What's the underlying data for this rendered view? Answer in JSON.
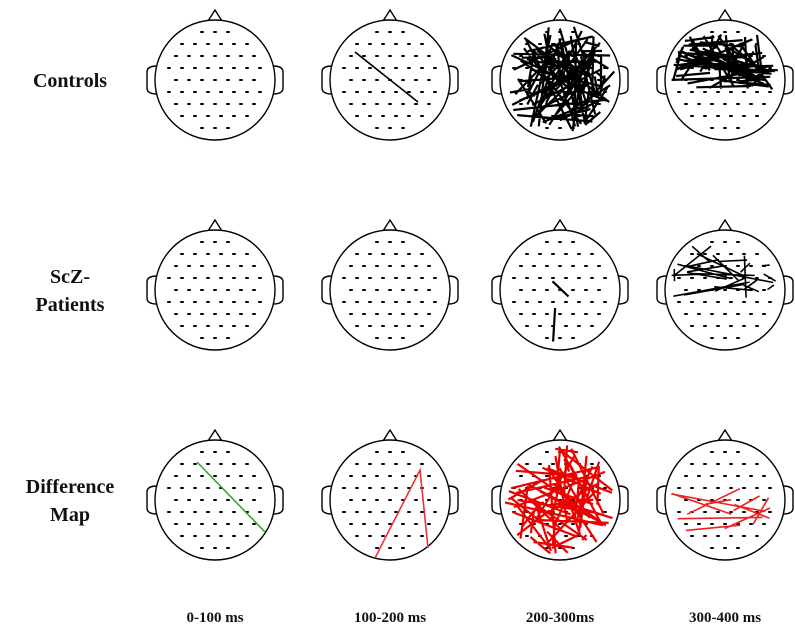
{
  "rows": [
    {
      "label": [
        "Controls"
      ]
    },
    {
      "label": [
        "ScZ-",
        "Patients"
      ]
    },
    {
      "label": [
        "Difference",
        "Map"
      ]
    }
  ],
  "columns": [
    "0-100 ms",
    "100-200 ms",
    "200-300ms",
    "300-400 ms"
  ]
}
